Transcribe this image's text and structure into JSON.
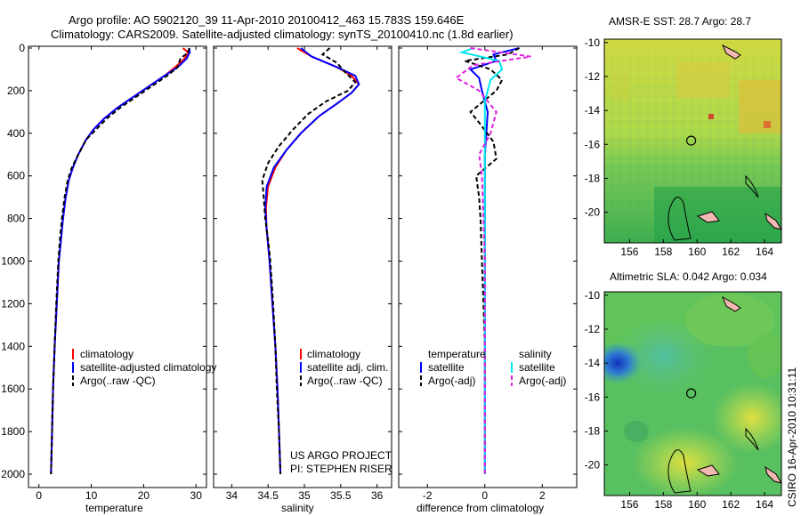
{
  "header": {
    "line1": "Argo profile: AO 5902120_39 11-Apr-2010 20100412_463 15.783S 159.646E",
    "line2": "Climatology: CARS2009. Satellite-adjusted climatology: synTS_20100410.nc (1.8d earlier)"
  },
  "footer_vertical": "CSIRO 16-Apr-2010 10:31:11",
  "colors": {
    "climatology": "#ff0000",
    "satellite": "#0000ff",
    "argo": "#000000",
    "salinity_satellite": "#00e5ee",
    "salinity_argo": "#e020e0",
    "land": "#f3b8b0"
  },
  "chart_data": [
    {
      "type": "line",
      "panel": "temperature",
      "xlabel": "temperature",
      "xlim": [
        -2,
        32
      ],
      "xticks": [
        "0",
        "10",
        "20",
        "30"
      ],
      "xtick_values": [
        0,
        10,
        20,
        30
      ],
      "ylim": [
        0,
        2050
      ],
      "yreversed": true,
      "yticks": [
        "0",
        "200",
        "400",
        "600",
        "800",
        "1000",
        "1200",
        "1400",
        "1600",
        "1800",
        "2000"
      ],
      "ytick_values": [
        0,
        200,
        400,
        600,
        800,
        1000,
        1200,
        1400,
        1600,
        1800,
        2000
      ],
      "legend": [
        "climatology",
        "satellite-adjusted climatology",
        "Argo(..raw -QC)"
      ],
      "series": [
        {
          "name": "climatology",
          "color": "#ff0000",
          "dash": "",
          "points": [
            [
              27.5,
              0
            ],
            [
              28.5,
              20
            ],
            [
              27.8,
              50
            ],
            [
              26,
              90
            ],
            [
              24,
              130
            ],
            [
              21,
              180
            ],
            [
              18,
              230
            ],
            [
              15,
              280
            ],
            [
              12.5,
              330
            ],
            [
              10.5,
              380
            ],
            [
              9,
              430
            ],
            [
              7.5,
              500
            ],
            [
              6.5,
              560
            ],
            [
              5.7,
              620
            ],
            [
              5.1,
              700
            ],
            [
              4.6,
              800
            ],
            [
              4.2,
              900
            ],
            [
              3.8,
              1000
            ],
            [
              3.4,
              1200
            ],
            [
              3,
              1400
            ],
            [
              2.7,
              1600
            ],
            [
              2.5,
              1800
            ],
            [
              2.3,
              2000
            ]
          ]
        },
        {
          "name": "satellite-adjusted climatology",
          "color": "#0000ff",
          "dash": "",
          "points": [
            [
              28.7,
              0
            ],
            [
              28.8,
              20
            ],
            [
              28.2,
              50
            ],
            [
              26.5,
              90
            ],
            [
              24,
              130
            ],
            [
              21,
              180
            ],
            [
              18,
              230
            ],
            [
              15,
              280
            ],
            [
              12.5,
              330
            ],
            [
              10.5,
              380
            ],
            [
              9,
              430
            ],
            [
              7.5,
              500
            ],
            [
              6.5,
              560
            ],
            [
              5.7,
              620
            ],
            [
              5.1,
              700
            ],
            [
              4.6,
              800
            ],
            [
              4.2,
              900
            ],
            [
              3.8,
              1000
            ],
            [
              3.4,
              1200
            ],
            [
              3,
              1400
            ],
            [
              2.7,
              1600
            ],
            [
              2.5,
              1800
            ],
            [
              2.3,
              2000
            ]
          ]
        },
        {
          "name": "Argo(..raw -QC)",
          "color": "#000000",
          "dash": "5,3",
          "points": [
            [
              28.7,
              0
            ],
            [
              28.5,
              20
            ],
            [
              27,
              50
            ],
            [
              26.5,
              90
            ],
            [
              24.5,
              130
            ],
            [
              21.5,
              180
            ],
            [
              18.5,
              230
            ],
            [
              15.5,
              280
            ],
            [
              13,
              330
            ],
            [
              11,
              380
            ],
            [
              9,
              430
            ],
            [
              7.5,
              500
            ],
            [
              6.3,
              560
            ],
            [
              5.5,
              620
            ],
            [
              4.9,
              700
            ],
            [
              4.4,
              800
            ],
            [
              4,
              900
            ],
            [
              3.7,
              1000
            ],
            [
              3.3,
              1200
            ],
            [
              3,
              1400
            ],
            [
              2.7,
              1600
            ],
            [
              2.5,
              1800
            ],
            [
              2.3,
              2000
            ]
          ]
        }
      ]
    },
    {
      "type": "line",
      "panel": "salinity",
      "xlabel": "salinity",
      "xlim": [
        33.75,
        36.2
      ],
      "xticks": [
        "34",
        "34.5",
        "35",
        "35.5",
        "36"
      ],
      "xtick_values": [
        34,
        34.5,
        35,
        35.5,
        36
      ],
      "ylim": [
        0,
        2050
      ],
      "yreversed": true,
      "legend": [
        "climatology",
        "satellite adj. clim.",
        "Argo(..raw -QC)"
      ],
      "annotation": [
        "US ARGO PROJECT",
        "PI: STEPHEN RISER"
      ],
      "series": [
        {
          "name": "climatology",
          "color": "#ff0000",
          "dash": "",
          "points": [
            [
              34.9,
              0
            ],
            [
              35.1,
              40
            ],
            [
              35.45,
              90
            ],
            [
              35.65,
              130
            ],
            [
              35.75,
              170
            ],
            [
              35.65,
              210
            ],
            [
              35.45,
              260
            ],
            [
              35.2,
              320
            ],
            [
              34.95,
              400
            ],
            [
              34.75,
              480
            ],
            [
              34.6,
              560
            ],
            [
              34.5,
              650
            ],
            [
              34.47,
              750
            ],
            [
              34.48,
              850
            ],
            [
              34.52,
              1000
            ],
            [
              34.56,
              1200
            ],
            [
              34.6,
              1400
            ],
            [
              34.63,
              1600
            ],
            [
              34.65,
              1800
            ],
            [
              34.67,
              2000
            ]
          ]
        },
        {
          "name": "satellite adj. clim.",
          "color": "#0000ff",
          "dash": "",
          "points": [
            [
              34.95,
              0
            ],
            [
              35.1,
              40
            ],
            [
              35.45,
              90
            ],
            [
              35.7,
              130
            ],
            [
              35.75,
              170
            ],
            [
              35.65,
              210
            ],
            [
              35.45,
              260
            ],
            [
              35.2,
              320
            ],
            [
              34.95,
              400
            ],
            [
              34.75,
              480
            ],
            [
              34.58,
              560
            ],
            [
              34.48,
              650
            ],
            [
              34.46,
              750
            ],
            [
              34.48,
              850
            ],
            [
              34.52,
              1000
            ],
            [
              34.56,
              1200
            ],
            [
              34.6,
              1400
            ],
            [
              34.63,
              1600
            ],
            [
              34.65,
              1800
            ],
            [
              34.67,
              2000
            ]
          ]
        },
        {
          "name": "Argo(..raw -QC)",
          "color": "#000000",
          "dash": "5,3",
          "points": [
            [
              35.35,
              0
            ],
            [
              35.25,
              30
            ],
            [
              35.45,
              70
            ],
            [
              35.55,
              110
            ],
            [
              35.7,
              160
            ],
            [
              35.6,
              200
            ],
            [
              35.3,
              250
            ],
            [
              35.05,
              310
            ],
            [
              34.85,
              380
            ],
            [
              34.65,
              460
            ],
            [
              34.5,
              540
            ],
            [
              34.42,
              620
            ],
            [
              34.44,
              700
            ],
            [
              34.46,
              800
            ],
            [
              34.5,
              900
            ],
            [
              34.53,
              1000
            ],
            [
              34.57,
              1200
            ],
            [
              34.6,
              1400
            ],
            [
              34.62,
              1600
            ],
            [
              34.65,
              1800
            ],
            [
              34.67,
              2000
            ]
          ]
        }
      ]
    },
    {
      "type": "line",
      "panel": "difference",
      "xlabel": "difference from climatology",
      "xlim": [
        -3,
        3.2
      ],
      "xticks": [
        "-2",
        "0",
        "2"
      ],
      "xtick_values": [
        -2,
        0,
        2
      ],
      "ylim": [
        0,
        2050
      ],
      "yreversed": true,
      "legend_headers": [
        "temperature",
        "salinity"
      ],
      "legend": [
        "satellite",
        "Argo(-adj)",
        "satellite",
        "Argo(-adj)"
      ],
      "series": [
        {
          "name": "satellite",
          "group": "temperature",
          "color": "#0000ff",
          "dash": "",
          "points": [
            [
              1.2,
              0
            ],
            [
              0.3,
              30
            ],
            [
              0.4,
              60
            ],
            [
              -0.5,
              100
            ],
            [
              -0.2,
              140
            ],
            [
              -0.1,
              200
            ],
            [
              0.1,
              300
            ],
            [
              0.05,
              400
            ],
            [
              0,
              500
            ],
            [
              0,
              600
            ],
            [
              0,
              800
            ],
            [
              0,
              1000
            ],
            [
              0,
              1200
            ],
            [
              0,
              1400
            ],
            [
              0,
              1600
            ],
            [
              0,
              1800
            ],
            [
              0,
              2000
            ]
          ]
        },
        {
          "name": "Argo(-adj)",
          "group": "temperature",
          "color": "#000000",
          "dash": "5,3",
          "points": [
            [
              1.2,
              0
            ],
            [
              0.8,
              30
            ],
            [
              -0.7,
              60
            ],
            [
              0.2,
              100
            ],
            [
              0.6,
              150
            ],
            [
              0.4,
              200
            ],
            [
              -0.5,
              300
            ],
            [
              -0.2,
              350
            ],
            [
              0.3,
              440
            ],
            [
              0.4,
              520
            ],
            [
              -0.3,
              600
            ],
            [
              -0.2,
              700
            ],
            [
              -0.15,
              800
            ],
            [
              -0.1,
              1000
            ],
            [
              -0.05,
              1200
            ],
            [
              0,
              1400
            ],
            [
              0,
              1600
            ],
            [
              0,
              1800
            ],
            [
              0,
              2000
            ]
          ]
        },
        {
          "name": "satellite",
          "group": "salinity",
          "color": "#00e5ee",
          "dash": "",
          "points": [
            [
              -0.4,
              0
            ],
            [
              -0.8,
              20
            ],
            [
              0.5,
              60
            ],
            [
              0.6,
              100
            ],
            [
              0.2,
              150
            ],
            [
              0,
              250
            ],
            [
              0,
              400
            ],
            [
              0,
              600
            ],
            [
              0,
              800
            ],
            [
              0,
              1000
            ],
            [
              0,
              1200
            ],
            [
              0,
              1400
            ],
            [
              0,
              1600
            ],
            [
              0,
              1800
            ],
            [
              0,
              2000
            ]
          ]
        },
        {
          "name": "Argo(-adj)",
          "group": "salinity",
          "color": "#e020e0",
          "dash": "5,3",
          "points": [
            [
              -0.5,
              0
            ],
            [
              1.6,
              40
            ],
            [
              -0.4,
              80
            ],
            [
              -1,
              140
            ],
            [
              -0.2,
              200
            ],
            [
              0.4,
              300
            ],
            [
              0.2,
              400
            ],
            [
              -0.2,
              500
            ],
            [
              -0.1,
              600
            ],
            [
              -0.05,
              800
            ],
            [
              0,
              1000
            ],
            [
              0,
              1200
            ],
            [
              0,
              1400
            ],
            [
              0,
              1600
            ],
            [
              0,
              1800
            ],
            [
              0,
              2000
            ]
          ]
        }
      ]
    },
    {
      "type": "heatmap",
      "panel": "sst-map",
      "title": "AMSR-E SST: 28.7 Argo: 28.7",
      "xlim": [
        154.5,
        165
      ],
      "ylim": [
        -21.8,
        -9.8
      ],
      "xticks": [
        "156",
        "158",
        "160",
        "162",
        "164"
      ],
      "xtick_values": [
        156,
        158,
        160,
        162,
        164
      ],
      "yticks": [
        "-10",
        "-12",
        "-14",
        "-16",
        "-18",
        "-20"
      ],
      "ytick_values": [
        -10,
        -12,
        -14,
        -16,
        -18,
        -20
      ],
      "marker": {
        "lon": 159.65,
        "lat": -15.78
      }
    },
    {
      "type": "heatmap",
      "panel": "sla-map",
      "title": "Altimetric SLA: 0.042 Argo: 0.034",
      "xlim": [
        154.5,
        165
      ],
      "ylim": [
        -21.8,
        -9.8
      ],
      "xticks": [
        "156",
        "158",
        "160",
        "162",
        "164"
      ],
      "xtick_values": [
        156,
        158,
        160,
        162,
        164
      ],
      "yticks": [
        "-10",
        "-12",
        "-14",
        "-16",
        "-18",
        "-20"
      ],
      "ytick_values": [
        -10,
        -12,
        -14,
        -16,
        -18,
        -20
      ],
      "marker": {
        "lon": 159.65,
        "lat": -15.78
      }
    }
  ]
}
